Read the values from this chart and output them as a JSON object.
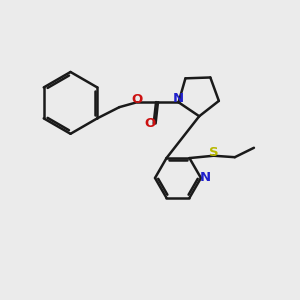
{
  "bg_color": "#ebebeb",
  "bond_color": "#1a1a1a",
  "N_color": "#2020cc",
  "O_color": "#cc1111",
  "S_color": "#b8b800",
  "bond_width": 1.8,
  "figsize": [
    3.0,
    3.0
  ],
  "dpi": 100,
  "xlim": [
    0,
    10
  ],
  "ylim": [
    0,
    10
  ]
}
